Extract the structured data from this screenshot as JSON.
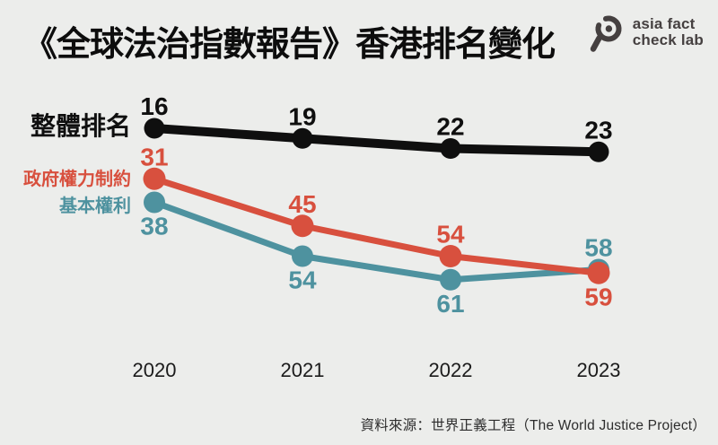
{
  "header": {
    "title": "《全球法治指數報告》香港排名變化",
    "logo": {
      "line1": "asia fact",
      "line2": "check lab",
      "color": "#454040",
      "icon": "magnifier-icon"
    }
  },
  "chart_data": {
    "type": "line",
    "title": "《全球法治指數報告》香港排名變化",
    "categories": [
      "2020",
      "2021",
      "2022",
      "2023"
    ],
    "series": [
      {
        "name": "整體排名",
        "color": "#0f0f0f",
        "values": [
          16,
          19,
          22,
          23
        ],
        "label_positions": [
          "above",
          "above",
          "above",
          "above"
        ]
      },
      {
        "name": "政府權力制約",
        "color": "#d8503e",
        "values": [
          31,
          45,
          54,
          59
        ],
        "label_positions": [
          "above",
          "above",
          "above",
          "below"
        ]
      },
      {
        "name": "基本權利",
        "color": "#4e929f",
        "values": [
          38,
          54,
          61,
          58
        ],
        "label_positions": [
          "below",
          "below",
          "below",
          "above"
        ]
      }
    ],
    "xlabel": "",
    "ylabel": "",
    "grid": false,
    "legend_position": "left-of-first-point",
    "y_axis_note": "rank values, lower number plotted higher",
    "ylim": [
      14,
      66
    ]
  },
  "footer": {
    "source": "資料來源：世界正義工程（The World Justice Project）"
  },
  "colors": {
    "background": "#ecedeb",
    "overall": "#0f0f0f",
    "gov_power": "#d8503e",
    "basic_rights": "#4e929f",
    "year_ticks": "#1b1b1b",
    "source_text": "#2d2d2d"
  }
}
